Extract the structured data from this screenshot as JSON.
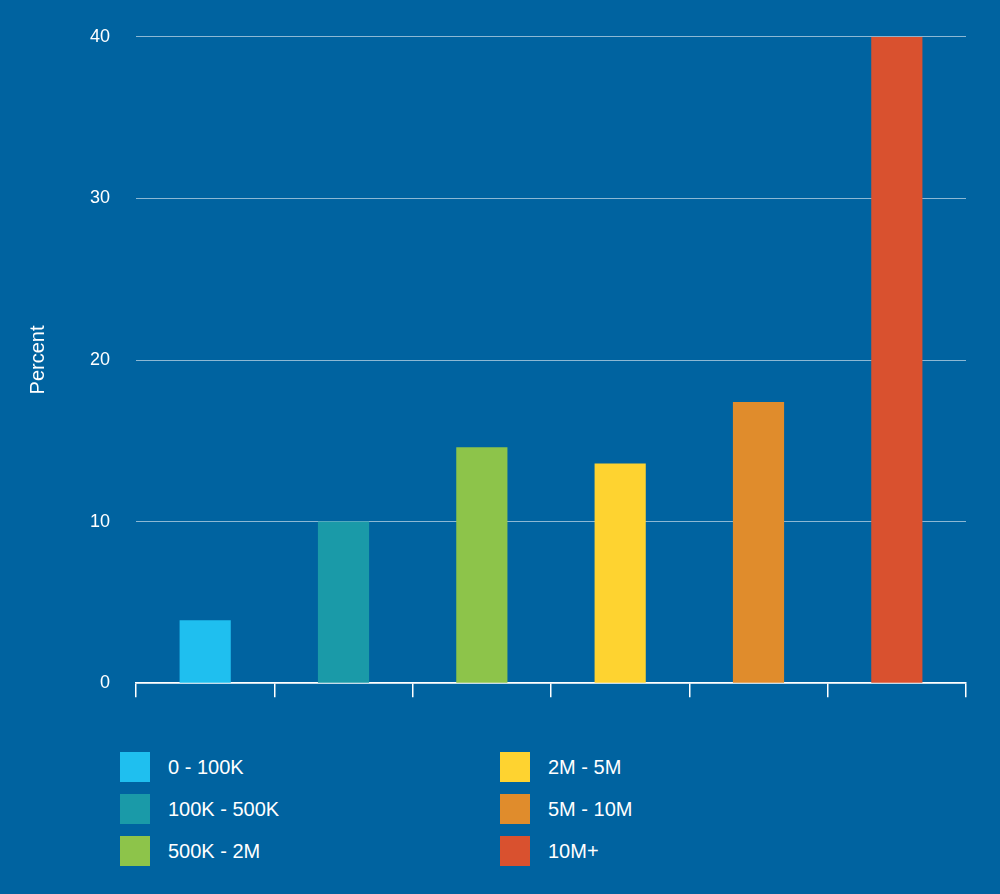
{
  "chart_data": {
    "type": "bar",
    "y_label": "Percent",
    "categories": [
      "0 - 100K",
      "100K - 500K",
      "500K - 2M",
      "2M - 5M",
      "5M - 10M",
      "10M+"
    ],
    "values": [
      3.9,
      10,
      14.6,
      13.6,
      17.4,
      40
    ],
    "colors": [
      "#1fbfef",
      "#1a9aa8",
      "#8dc44a",
      "#fed330",
      "#e08c2c",
      "#d9512f"
    ],
    "ylim": [
      0,
      40
    ],
    "yticks": [
      0,
      10,
      20,
      30,
      40
    ],
    "grid": true,
    "legend": "bottom",
    "tick_labels": "y"
  }
}
